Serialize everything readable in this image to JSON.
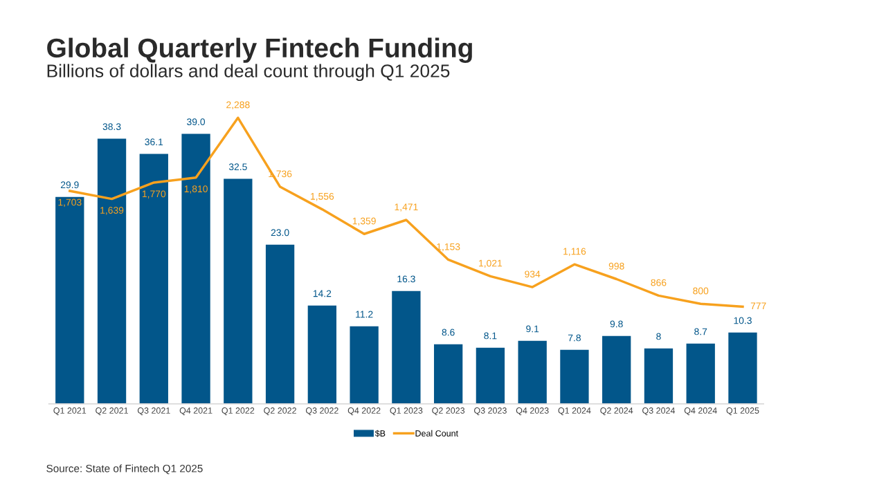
{
  "chart_data": {
    "type": "bar",
    "title": "Global Quarterly Fintech Funding",
    "subtitle": "Billions of dollars and deal count through Q1 2025",
    "categories": [
      "Q1 2021",
      "Q2 2021",
      "Q3 2021",
      "Q4 2021",
      "Q1 2022",
      "Q2 2022",
      "Q3 2022",
      "Q4 2022",
      "Q1 2023",
      "Q2 2023",
      "Q3 2023",
      "Q4 2023",
      "Q1 2024",
      "Q2 2024",
      "Q3 2024",
      "Q4 2024",
      "Q1 2025"
    ],
    "tick_labels": "x",
    "legend": "bottom",
    "series": [
      {
        "name": "$B",
        "color": "#02568a",
        "values": [
          29.9,
          38.3,
          36.1,
          39.0,
          32.5,
          23.0,
          14.2,
          11.2,
          16.3,
          8.6,
          8.1,
          9.1,
          7.8,
          9.8,
          8,
          8.7,
          10.3
        ],
        "value_labels": [
          "29.9",
          "38.3",
          "36.1",
          "39.0",
          "32.5",
          "23.0",
          "14.2",
          "11.2",
          "16.3",
          "8.6",
          "8.1",
          "9.1",
          "7.8",
          "9.8",
          "8",
          "8.7",
          "10.3"
        ]
      },
      {
        "name": "Deal Count",
        "type": "line",
        "axis": "y2",
        "color": "#f7a11e",
        "values": [
          1703,
          1639,
          1770,
          1810,
          2288,
          1736,
          1556,
          1359,
          1471,
          1153,
          1021,
          934,
          1116,
          998,
          866,
          800,
          777
        ],
        "value_labels": [
          "1,703",
          "1,639",
          "1,770",
          "1,810",
          "2,288",
          "1,736",
          "1,556",
          "1,359",
          "1,471",
          "1,153",
          "1,021",
          "934",
          "1,116",
          "998",
          "866",
          "800",
          "777"
        ]
      }
    ],
    "annotations": [
      "Source: State of Fintech Q1 2025"
    ]
  }
}
